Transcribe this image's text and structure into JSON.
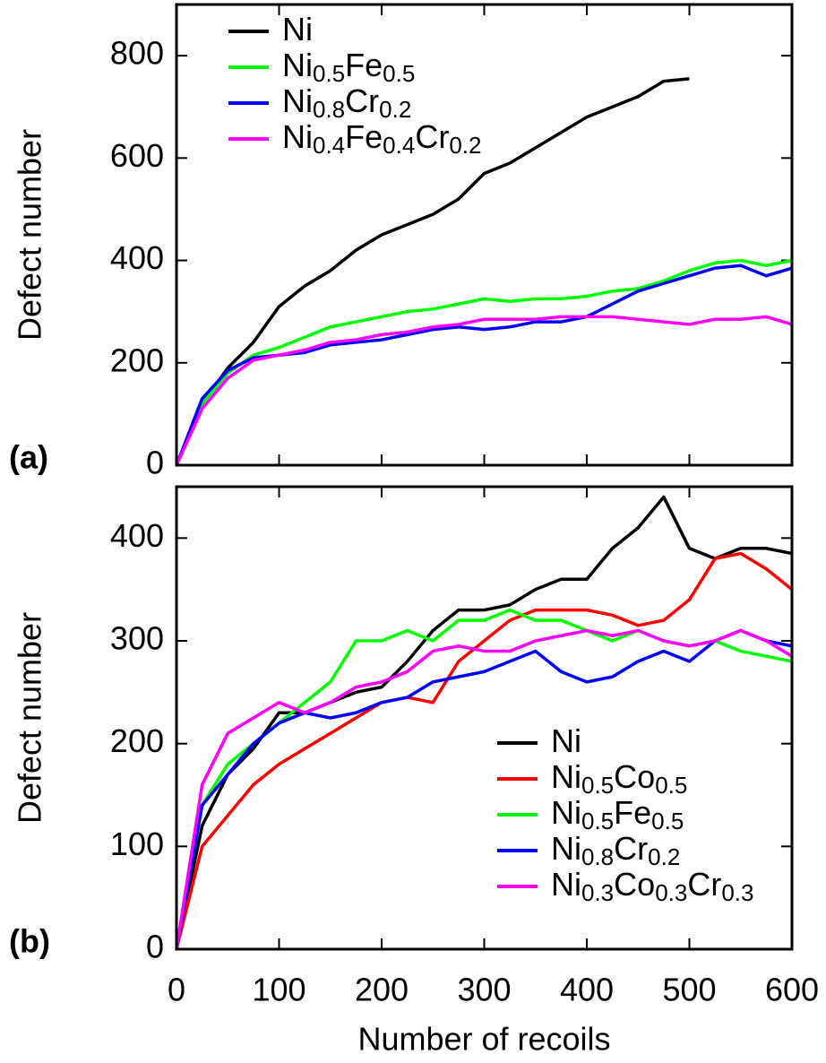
{
  "chart_data": [
    {
      "type": "line",
      "panel_label": "(a)",
      "ylabel": "Defect number",
      "x": [
        0,
        25,
        50,
        75,
        100,
        125,
        150,
        175,
        200,
        225,
        250,
        275,
        300,
        325,
        350,
        375,
        400,
        425,
        450,
        475,
        500,
        525,
        550,
        575,
        600
      ],
      "xlim": [
        0,
        600
      ],
      "ylim": [
        0,
        900
      ],
      "xticks": [
        0,
        100,
        200,
        300,
        400,
        500,
        600
      ],
      "yticks": [
        0,
        200,
        400,
        600,
        800
      ],
      "legend": "upper left",
      "series": [
        {
          "name": "Ni",
          "color": "#000000",
          "values": [
            0,
            120,
            190,
            240,
            310,
            350,
            380,
            420,
            450,
            470,
            490,
            520,
            570,
            590,
            620,
            650,
            680,
            700,
            720,
            750,
            755,
            null,
            null,
            null,
            null
          ]
        },
        {
          "name": "Ni0.5Fe0.5",
          "color": "#00ff00",
          "values": [
            0,
            120,
            180,
            215,
            230,
            250,
            270,
            280,
            290,
            300,
            305,
            315,
            325,
            320,
            325,
            325,
            330,
            340,
            345,
            360,
            380,
            395,
            400,
            390,
            400
          ]
        },
        {
          "name": "Ni0.8Cr0.2",
          "color": "#0000ff",
          "values": [
            0,
            130,
            185,
            210,
            215,
            220,
            235,
            240,
            245,
            255,
            265,
            270,
            265,
            270,
            280,
            280,
            290,
            315,
            340,
            355,
            370,
            385,
            390,
            370,
            385
          ]
        },
        {
          "name": "Ni0.4Fe0.4Cr0.2",
          "color": "#ff00ff",
          "values": [
            0,
            110,
            170,
            205,
            215,
            225,
            240,
            245,
            255,
            260,
            270,
            275,
            285,
            285,
            285,
            290,
            290,
            290,
            285,
            280,
            275,
            285,
            285,
            290,
            275
          ]
        }
      ]
    },
    {
      "type": "line",
      "panel_label": "(b)",
      "ylabel": "Defect number",
      "xlabel": "Number of recoils",
      "x": [
        0,
        25,
        50,
        75,
        100,
        125,
        150,
        175,
        200,
        225,
        250,
        275,
        300,
        325,
        350,
        375,
        400,
        425,
        450,
        475,
        500,
        525,
        550,
        575,
        600
      ],
      "xlim": [
        0,
        600
      ],
      "ylim": [
        0,
        450
      ],
      "xticks": [
        0,
        100,
        200,
        300,
        400,
        500,
        600
      ],
      "yticks": [
        0,
        100,
        200,
        300,
        400
      ],
      "legend": "lower right",
      "series": [
        {
          "name": "Ni",
          "color": "#000000",
          "values": [
            0,
            120,
            170,
            195,
            230,
            230,
            240,
            250,
            255,
            280,
            310,
            330,
            330,
            335,
            350,
            360,
            360,
            390,
            410,
            440,
            390,
            380,
            390,
            390,
            385
          ]
        },
        {
          "name": "Ni0.5Co0.5",
          "color": "#ff0000",
          "values": [
            0,
            100,
            130,
            160,
            180,
            195,
            210,
            225,
            240,
            245,
            240,
            280,
            300,
            320,
            330,
            330,
            330,
            325,
            315,
            320,
            340,
            380,
            385,
            370,
            350
          ]
        },
        {
          "name": "Ni0.5Fe0.5",
          "color": "#00ff00",
          "values": [
            0,
            140,
            180,
            200,
            220,
            240,
            260,
            300,
            300,
            310,
            300,
            320,
            320,
            330,
            320,
            320,
            310,
            300,
            310,
            300,
            295,
            300,
            290,
            285,
            280
          ]
        },
        {
          "name": "Ni0.8Cr0.2",
          "color": "#0000ff",
          "values": [
            0,
            140,
            170,
            200,
            220,
            230,
            225,
            230,
            240,
            245,
            260,
            265,
            270,
            280,
            290,
            270,
            260,
            265,
            280,
            290,
            280,
            300,
            310,
            300,
            295
          ]
        },
        {
          "name": "Ni0.3Co0.3Cr0.3",
          "color": "#ff00ff",
          "values": [
            0,
            160,
            210,
            225,
            240,
            230,
            240,
            255,
            260,
            270,
            290,
            295,
            290,
            290,
            300,
            305,
            310,
            305,
            310,
            300,
            295,
            300,
            310,
            300,
            285
          ]
        }
      ]
    }
  ]
}
